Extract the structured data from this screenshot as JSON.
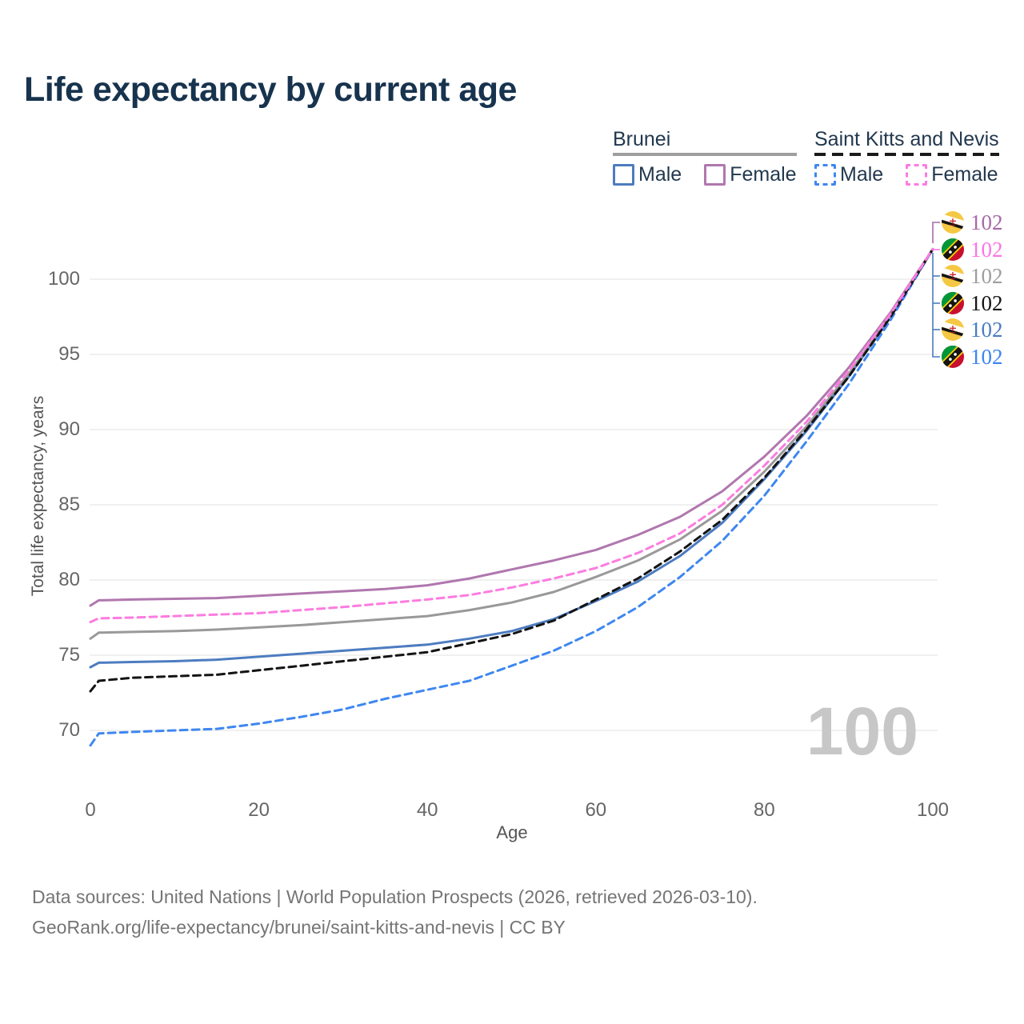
{
  "title": "Life expectancy by current age",
  "legend": {
    "groups": [
      {
        "label": "Brunei",
        "items": [
          {
            "label": "Male",
            "color": "#4d7cc0"
          },
          {
            "label": "Female",
            "color": "#b077ae"
          }
        ]
      },
      {
        "label": "Saint Kitts and Nevis",
        "items": [
          {
            "label": "Male",
            "color": "#3e87f0"
          },
          {
            "label": "Female",
            "color": "#fc7ce0"
          }
        ]
      }
    ]
  },
  "chart_data": {
    "type": "line",
    "title": "Life expectancy by current age",
    "xlabel": "Age",
    "ylabel": "Total life expectancy, years",
    "xlim": [
      0,
      100
    ],
    "ylim": [
      68.5,
      103.5
    ],
    "xticks": [
      0,
      20,
      40,
      60,
      80,
      100
    ],
    "yticks": [
      70,
      75,
      80,
      85,
      90,
      95,
      100
    ],
    "grid": "horizontal",
    "legend_position": "top-right",
    "x": [
      0,
      1,
      5,
      10,
      15,
      20,
      25,
      30,
      35,
      40,
      45,
      50,
      55,
      60,
      65,
      70,
      75,
      80,
      85,
      90,
      95,
      100
    ],
    "series": [
      {
        "name": "Brunei Male",
        "country": "Brunei",
        "sex": "male",
        "style": "solid",
        "color": "#4d7cc0",
        "values": [
          74.2,
          74.5,
          74.55,
          74.6,
          74.7,
          74.9,
          75.1,
          75.3,
          75.5,
          75.7,
          76.1,
          76.6,
          77.4,
          78.6,
          79.9,
          81.6,
          83.8,
          86.7,
          89.9,
          93.5,
          97.5,
          102
        ]
      },
      {
        "name": "Brunei Total",
        "country": "Brunei",
        "sex": "total",
        "style": "solid",
        "color": "#999999",
        "values": [
          76.1,
          76.5,
          76.55,
          76.6,
          76.7,
          76.85,
          77.0,
          77.2,
          77.4,
          77.6,
          78.0,
          78.5,
          79.2,
          80.2,
          81.3,
          82.7,
          84.6,
          87.2,
          90.2,
          93.7,
          97.6,
          102
        ]
      },
      {
        "name": "Brunei Female",
        "country": "Brunei",
        "sex": "female",
        "style": "solid",
        "color": "#b077ae",
        "values": [
          78.3,
          78.65,
          78.7,
          78.75,
          78.8,
          78.95,
          79.1,
          79.25,
          79.4,
          79.65,
          80.1,
          80.7,
          81.3,
          82.0,
          83.0,
          84.2,
          85.9,
          88.2,
          90.9,
          94.1,
          97.8,
          102
        ]
      },
      {
        "name": "Saint Kitts and Nevis Male",
        "country": "Saint Kitts and Nevis",
        "sex": "male",
        "style": "dashed",
        "color": "#3e87f0",
        "values": [
          69.0,
          69.8,
          69.9,
          70.0,
          70.1,
          70.45,
          70.9,
          71.4,
          72.1,
          72.7,
          73.3,
          74.3,
          75.3,
          76.6,
          78.2,
          80.2,
          82.6,
          85.6,
          89.2,
          93.0,
          97.3,
          102
        ]
      },
      {
        "name": "Saint Kitts and Nevis Total",
        "country": "Saint Kitts and Nevis",
        "sex": "total",
        "style": "dashed",
        "color": "#141414",
        "values": [
          72.6,
          73.3,
          73.5,
          73.6,
          73.7,
          74.0,
          74.3,
          74.6,
          74.9,
          75.2,
          75.8,
          76.4,
          77.3,
          78.7,
          80.1,
          81.9,
          84.0,
          86.8,
          90.0,
          93.5,
          97.5,
          102
        ]
      },
      {
        "name": "Saint Kitts and Nevis Female",
        "country": "Saint Kitts and Nevis",
        "sex": "female",
        "style": "dashed",
        "color": "#fc7ce0",
        "values": [
          77.2,
          77.45,
          77.5,
          77.6,
          77.7,
          77.8,
          78.0,
          78.2,
          78.45,
          78.7,
          79.0,
          79.5,
          80.1,
          80.8,
          81.8,
          83.1,
          85.0,
          87.6,
          90.5,
          93.9,
          97.7,
          102
        ]
      }
    ]
  },
  "end_labels": [
    {
      "country": "brunei",
      "series": "Brunei Female",
      "value": "102",
      "color": "#a76aa7"
    },
    {
      "country": "skn",
      "series": "Saint Kitts and Nevis Female",
      "value": "102",
      "color": "#fc74e8"
    },
    {
      "country": "brunei",
      "series": "Brunei Total",
      "value": "102",
      "color": "#9e9e9e"
    },
    {
      "country": "skn",
      "series": "Saint Kitts and Nevis Total",
      "value": "102",
      "color": "#141414"
    },
    {
      "country": "brunei",
      "series": "Brunei Male",
      "value": "102",
      "color": "#4a7cc0"
    },
    {
      "country": "skn",
      "series": "Saint Kitts and Nevis Male",
      "value": "102",
      "color": "#3c86f2"
    }
  ],
  "watermark": "100",
  "footer": {
    "line1": "Data sources: United Nations | World Population Prospects (2026, retrieved 2026-03-10).",
    "line2": "GeoRank.org/life-expectancy/brunei/saint-kitts-and-nevis | CC BY"
  }
}
